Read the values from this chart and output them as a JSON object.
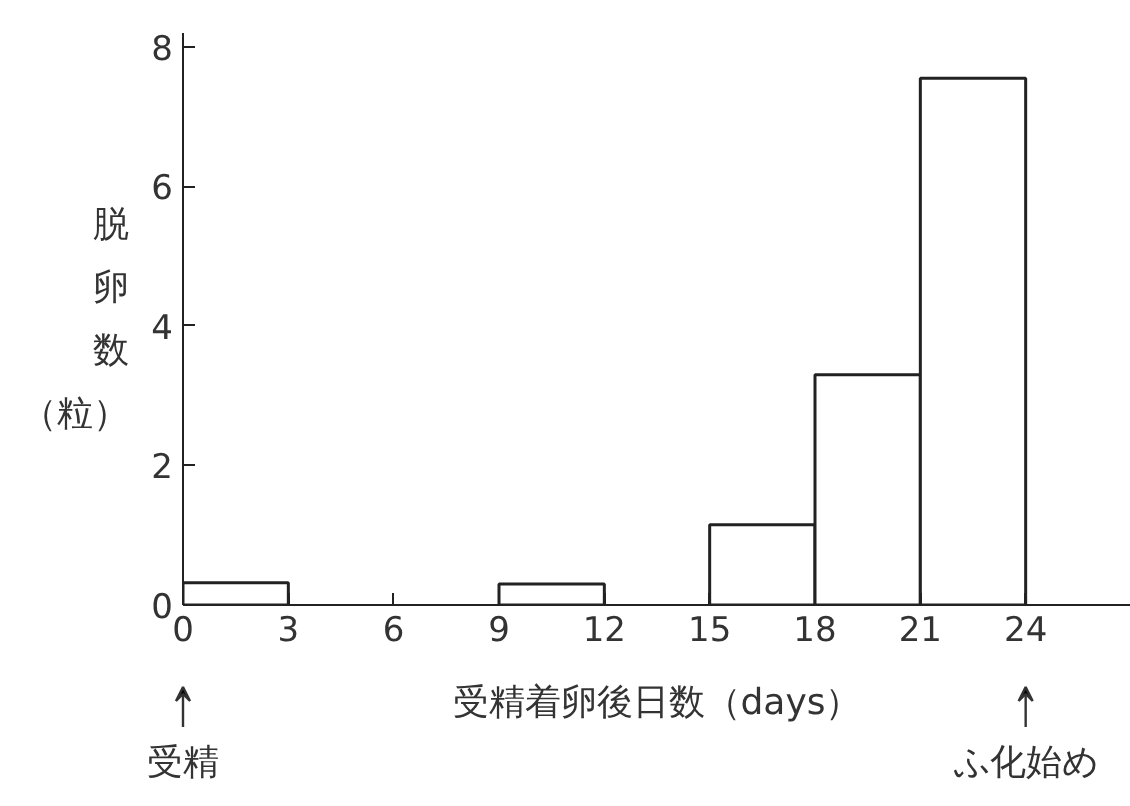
{
  "chart_data": {
    "type": "histogram",
    "xlabel": "受精着卵後日数（days）",
    "ylabel": "脱卵数（粒）",
    "bins": [
      0,
      3,
      6,
      9,
      12,
      15,
      18,
      21,
      24
    ],
    "values": [
      0.32,
      0,
      0,
      0.3,
      0,
      1.15,
      3.3,
      7.55
    ],
    "color": "#ffffff",
    "xlim": [
      0,
      27
    ],
    "xticks": [
      0,
      3,
      6,
      9,
      12,
      15,
      18,
      21,
      24
    ],
    "ylim": [
      0,
      8.2
    ],
    "yticks": [
      0,
      2,
      4,
      6,
      8
    ],
    "grid": false,
    "annotations": [
      "受精",
      "ふ化始め"
    ]
  }
}
